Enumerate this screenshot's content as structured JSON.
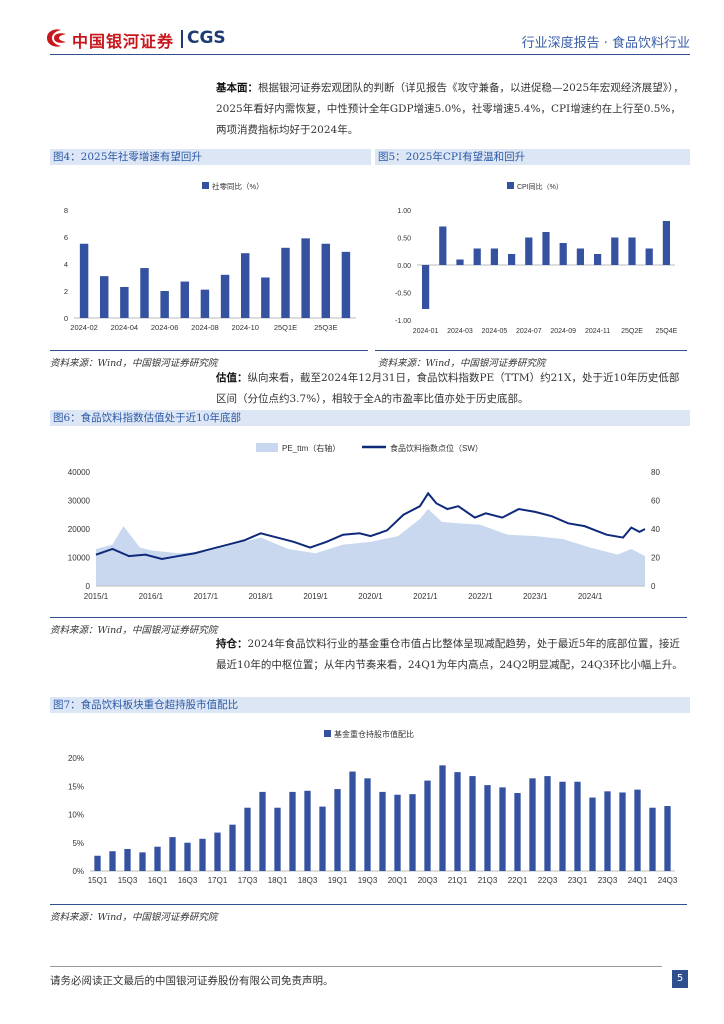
{
  "header": {
    "logo_cn": "中国银河证券",
    "logo_en": "CGS",
    "report_type": "行业深度报告 · 食品饮料行业"
  },
  "paragraphs": {
    "fundamentals": {
      "label": "基本面：",
      "text": "根据银河证券宏观团队的判断（详见报告《攻守兼备，以进促稳—2025年宏观经济展望》），2025年看好内需恢复，中性预计全年GDP增速5.0%，社零增速5.4%，CPI增速约在上行至0.5%，两项消费指标均好于2024年。"
    },
    "valuation": {
      "label": "估值：",
      "text": "纵向来看，截至2024年12月31日，食品饮料指数PE（TTM）约21X，处于近10年历史低部区间（分位点约3.7%），相较于全A的市盈率比值亦处于历史底部。"
    },
    "holdings": {
      "label": "持仓：",
      "text": "2024年食品饮料行业的基金重仓市值占比整体呈现减配趋势，处于最近5年的底部位置，接近最近10年的中枢位置；从年内节奏来看，24Q1为年内高点，24Q2明显减配，24Q3环比小幅上升。"
    }
  },
  "figures": {
    "fig4": {
      "title": "图4：2025年社零增速有望回升",
      "source": "资料来源：Wind，中国银河证券研究院"
    },
    "fig5": {
      "title": "图5：2025年CPI有望温和回升",
      "source": "资料来源：Wind，中国银河证券研究院"
    },
    "fig6": {
      "title": "图6：食品饮料指数估值处于近10年底部",
      "source": "资料来源：Wind，中国银河证券研究院"
    },
    "fig7": {
      "title": "图7：食品饮料板块重仓超持股市值配比",
      "source": "资料来源：Wind，中国银河证券研究院"
    }
  },
  "chart_data": [
    {
      "id": "fig4",
      "type": "bar",
      "legend": "社零同比（%）",
      "categories": [
        "2024-02",
        "2024-03",
        "2024-04",
        "2024-05",
        "2024-06",
        "2024-07",
        "2024-08",
        "2024-09",
        "2024-10",
        "2024-11",
        "25Q1E",
        "25Q2E",
        "25Q3E",
        "25Q4E"
      ],
      "tick_labels": [
        "2024-02",
        "2024-04",
        "2024-06",
        "2024-08",
        "2024-10",
        "25Q1E",
        "25Q3E"
      ],
      "values": [
        5.5,
        3.1,
        2.3,
        3.7,
        2.0,
        2.7,
        2.1,
        3.2,
        4.8,
        3.0,
        5.2,
        5.9,
        5.5,
        4.9
      ],
      "ylim": [
        0,
        8
      ],
      "yticks": [
        "0",
        "2",
        "4",
        "6",
        "8"
      ],
      "color": "#3552a0"
    },
    {
      "id": "fig5",
      "type": "bar",
      "legend": "CPI同比（%）",
      "categories": [
        "2024-01",
        "2024-02",
        "2024-03",
        "2024-04",
        "2024-05",
        "2024-06",
        "2024-07",
        "2024-08",
        "2024-09",
        "2024-10",
        "2024-11",
        "25Q1E",
        "25Q2E",
        "25Q3E",
        "25Q4E"
      ],
      "tick_labels": [
        "2024-01",
        "2024-03",
        "2024-05",
        "2024-07",
        "2024-09",
        "2024-11",
        "25Q2E",
        "25Q4E"
      ],
      "values": [
        -0.8,
        0.7,
        0.1,
        0.3,
        0.3,
        0.2,
        0.5,
        0.6,
        0.4,
        0.3,
        0.2,
        0.5,
        0.5,
        0.3,
        0.8
      ],
      "ylim": [
        -1.0,
        1.0
      ],
      "yticks": [
        "-1.00",
        "-0.50",
        "0.00",
        "0.50",
        "1.00"
      ],
      "color": "#3552a0"
    },
    {
      "id": "fig6",
      "type": "area+line",
      "legend_area": "PE_ttm（右轴）",
      "legend_line": "食品饮料指数点位（SW）",
      "x_ticks": [
        "2015/1",
        "2016/1",
        "2017/1",
        "2018/1",
        "2019/1",
        "2020/1",
        "2021/1",
        "2022/1",
        "2023/1",
        "2024/1"
      ],
      "left_axis": {
        "ylim": [
          0,
          40000
        ],
        "ticks": [
          "0",
          "10000",
          "20000",
          "30000",
          "40000"
        ]
      },
      "right_axis": {
        "ylim": [
          0,
          80
        ],
        "ticks": [
          "0",
          "20",
          "40",
          "60",
          "80"
        ]
      },
      "series_index": {
        "name": "食品饮料指数点位（SW）",
        "x": [
          2015.0,
          2015.3,
          2015.6,
          2015.9,
          2016.2,
          2016.5,
          2016.8,
          2017.1,
          2017.4,
          2017.7,
          2018.0,
          2018.3,
          2018.6,
          2018.9,
          2019.2,
          2019.5,
          2019.8,
          2020.0,
          2020.3,
          2020.6,
          2020.9,
          2021.05,
          2021.2,
          2021.4,
          2021.6,
          2021.9,
          2022.1,
          2022.4,
          2022.7,
          2023.0,
          2023.3,
          2023.6,
          2023.9,
          2024.1,
          2024.3,
          2024.6,
          2024.75,
          2024.9,
          2025.0
        ],
        "values": [
          11000,
          13000,
          10500,
          11000,
          9500,
          10500,
          11500,
          13000,
          14500,
          16000,
          18500,
          17000,
          15500,
          13500,
          15500,
          18000,
          18500,
          17500,
          19500,
          25000,
          28000,
          32500,
          29000,
          27000,
          28000,
          24000,
          25500,
          24000,
          27000,
          26000,
          24500,
          22000,
          21000,
          19500,
          18000,
          17000,
          20500,
          19000,
          20000
        ]
      },
      "series_pe": {
        "name": "PE_ttm（右轴）",
        "x": [
          2015.0,
          2015.3,
          2015.5,
          2015.8,
          2016.0,
          2016.5,
          2017.0,
          2017.5,
          2018.0,
          2018.5,
          2019.0,
          2019.5,
          2020.0,
          2020.5,
          2020.9,
          2021.05,
          2021.3,
          2021.6,
          2022.0,
          2022.5,
          2023.0,
          2023.5,
          2024.0,
          2024.5,
          2024.75,
          2025.0
        ],
        "values": [
          26,
          29,
          42,
          27,
          25,
          23,
          24,
          29,
          34,
          26,
          23,
          29,
          31,
          35,
          47,
          54,
          45,
          44,
          43,
          36,
          35,
          33,
          27,
          22,
          26,
          21
        ]
      }
    },
    {
      "id": "fig7",
      "type": "bar",
      "legend": "基金重仓持股市值配比",
      "categories": [
        "15Q1",
        "15Q2",
        "15Q3",
        "15Q4",
        "16Q1",
        "16Q2",
        "16Q3",
        "16Q4",
        "17Q1",
        "17Q2",
        "17Q3",
        "17Q4",
        "18Q1",
        "18Q2",
        "18Q3",
        "18Q4",
        "19Q1",
        "19Q2",
        "19Q3",
        "19Q4",
        "20Q1",
        "20Q2",
        "20Q3",
        "20Q4",
        "21Q1",
        "21Q2",
        "21Q3",
        "21Q4",
        "22Q1",
        "22Q2",
        "22Q3",
        "22Q4",
        "23Q1",
        "23Q2",
        "23Q3",
        "23Q4",
        "24Q1",
        "24Q2",
        "24Q3"
      ],
      "tick_labels": [
        "15Q1",
        "15Q3",
        "16Q1",
        "16Q3",
        "17Q1",
        "17Q3",
        "18Q1",
        "18Q3",
        "19Q1",
        "19Q3",
        "20Q1",
        "20Q3",
        "21Q1",
        "21Q3",
        "22Q1",
        "22Q3",
        "23Q1",
        "23Q3",
        "24Q1",
        "24Q3"
      ],
      "values": [
        2.7,
        3.5,
        3.9,
        3.3,
        4.3,
        6.0,
        5.0,
        5.7,
        6.8,
        8.2,
        11.2,
        14.0,
        11.2,
        14.0,
        14.2,
        11.4,
        14.5,
        17.6,
        16.4,
        14.0,
        13.5,
        13.6,
        16.0,
        18.7,
        17.5,
        16.8,
        15.2,
        14.8,
        13.8,
        16.4,
        16.8,
        15.8,
        15.8,
        13.0,
        14.1,
        13.9,
        14.4,
        11.2,
        11.5
      ],
      "ylim": [
        0,
        20
      ],
      "yticks": [
        "0%",
        "5%",
        "10%",
        "15%",
        "20%"
      ],
      "color": "#3552a0"
    }
  ],
  "footer": {
    "disclaimer": "请务必阅读正文最后的中国银河证券股份有限公司免责声明。",
    "page": "5"
  },
  "colors": {
    "brand_red": "#c8161d",
    "brand_blue": "#1f3b73",
    "bar_blue": "#3552a0",
    "area_blue": "#c9d8ef",
    "line_navy": "#0f2a7a"
  }
}
